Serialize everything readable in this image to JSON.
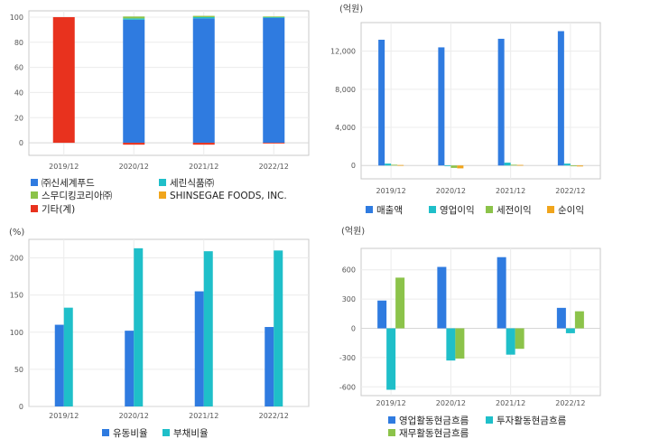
{
  "chart_data": [
    {
      "type": "bar",
      "stacked": true,
      "title": "",
      "unit_label": "",
      "categories": [
        "2019/12",
        "2020/12",
        "2021/12",
        "2022/12"
      ],
      "ylim": [
        -10,
        105
      ],
      "yticks": [
        0,
        20,
        40,
        60,
        80,
        100
      ],
      "series": [
        {
          "name": "㈜신세계푸드",
          "color": "#2f7be0",
          "values": [
            0,
            98,
            99,
            99.5
          ]
        },
        {
          "name": "세린식품㈜",
          "color": "#1fbfc9",
          "values": [
            0,
            1,
            1,
            0.5
          ]
        },
        {
          "name": "스무디킹코리아㈜",
          "color": "#8cc34a",
          "values": [
            0,
            1.5,
            1,
            0.5
          ]
        },
        {
          "name": "SHINSEGAE FOODS, INC.",
          "color": "#f0a51c",
          "values": [
            0,
            0,
            0,
            0
          ]
        },
        {
          "name": "기타(계)",
          "color": "#e8321e",
          "values": [
            100,
            -1.5,
            -1.5,
            -0.5
          ]
        }
      ]
    },
    {
      "type": "bar",
      "title": "",
      "unit_label": "(억원)",
      "categories": [
        "2019/12",
        "2020/12",
        "2021/12",
        "2022/12"
      ],
      "ylim": [
        -1400,
        15000
      ],
      "yticks": [
        0,
        4000,
        8000,
        12000
      ],
      "ytick_labels": [
        "0",
        "4,000",
        "8,000",
        "12,000"
      ],
      "series": [
        {
          "name": "매출액",
          "color": "#2f7be0",
          "values": [
            13200,
            12400,
            13300,
            14100
          ]
        },
        {
          "name": "영업이익",
          "color": "#1fbfc9",
          "values": [
            200,
            -50,
            300,
            200
          ]
        },
        {
          "name": "세전이익",
          "color": "#8cc34a",
          "values": [
            80,
            -250,
            80,
            -80
          ]
        },
        {
          "name": "순이익",
          "color": "#f0a51c",
          "values": [
            50,
            -300,
            60,
            -100
          ]
        }
      ]
    },
    {
      "type": "bar",
      "title": "",
      "unit_label": "(%)",
      "categories": [
        "2019/12",
        "2020/12",
        "2021/12",
        "2022/12"
      ],
      "ylim": [
        0,
        225
      ],
      "yticks": [
        0,
        50,
        100,
        150,
        200
      ],
      "series": [
        {
          "name": "유동비율",
          "color": "#2f7be0",
          "values": [
            110,
            102,
            155,
            107
          ]
        },
        {
          "name": "부채비율",
          "color": "#1fbfc9",
          "values": [
            133,
            213,
            209,
            210
          ]
        }
      ]
    },
    {
      "type": "bar",
      "title": "",
      "unit_label": "(억원)",
      "categories": [
        "2019/12",
        "2020/12",
        "2021/12",
        "2022/12"
      ],
      "ylim": [
        -690,
        820
      ],
      "yticks": [
        -600,
        -300,
        0,
        300,
        600
      ],
      "series": [
        {
          "name": "영업활동현금흐름",
          "color": "#2f7be0",
          "values": [
            285,
            630,
            730,
            210
          ]
        },
        {
          "name": "투자활동현금흐름",
          "color": "#1fbfc9",
          "values": [
            -630,
            -330,
            -270,
            -50
          ]
        },
        {
          "name": "재무활동현금흐름",
          "color": "#8cc34a",
          "values": [
            520,
            -310,
            -210,
            175
          ]
        }
      ]
    }
  ]
}
